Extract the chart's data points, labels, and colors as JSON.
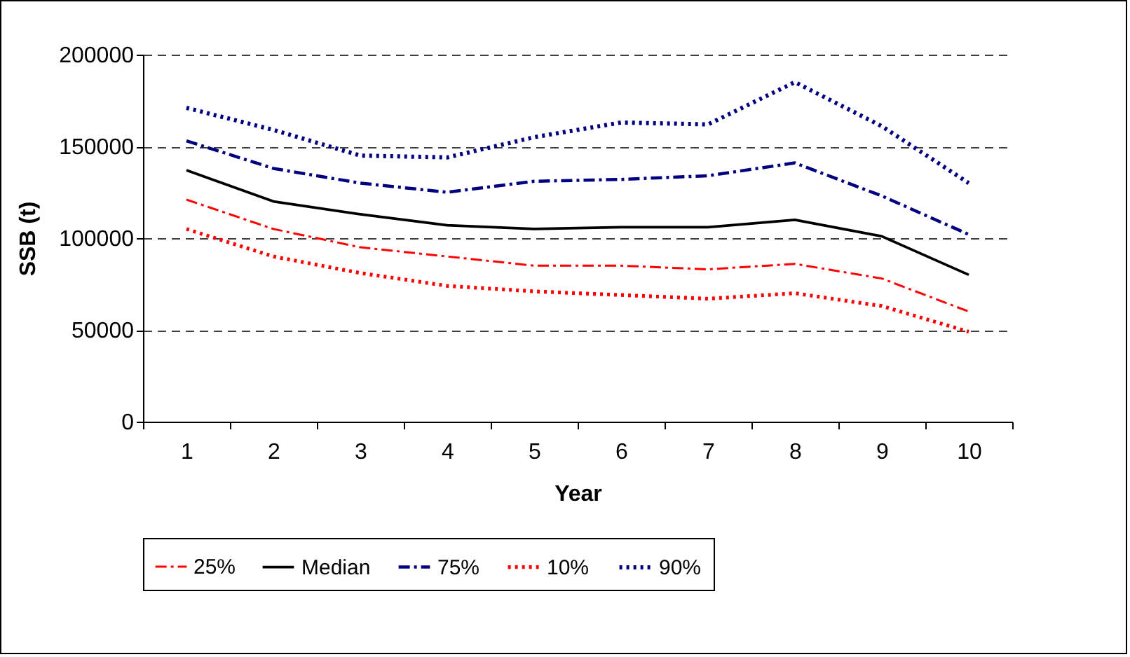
{
  "chart_data": {
    "type": "line",
    "xlabel": "Year",
    "ylabel": "SSB (t)",
    "categories": [
      "1",
      "2",
      "3",
      "4",
      "5",
      "6",
      "7",
      "8",
      "9",
      "10"
    ],
    "series": [
      {
        "name": "25%",
        "color": "#ff0000",
        "line_style": "dashed",
        "values": [
          121000,
          105000,
          95000,
          90000,
          85000,
          85000,
          83000,
          86000,
          78000,
          60000
        ]
      },
      {
        "name": "Median",
        "color": "#000000",
        "line_style": "solid",
        "values": [
          137000,
          120000,
          113000,
          107000,
          105000,
          106000,
          106000,
          110000,
          101000,
          80000
        ]
      },
      {
        "name": "75%",
        "color": "#000080",
        "line_style": "dashed",
        "values": [
          153000,
          138000,
          130000,
          125000,
          131000,
          132000,
          134000,
          141000,
          123000,
          102000
        ]
      },
      {
        "name": "10%",
        "color": "#ff0000",
        "line_style": "dotted",
        "values": [
          105000,
          90000,
          81000,
          74000,
          71000,
          69000,
          67000,
          70000,
          63000,
          49000
        ]
      },
      {
        "name": "90%",
        "color": "#000080",
        "line_style": "dotted",
        "values": [
          171000,
          159000,
          145000,
          144000,
          155000,
          163000,
          162000,
          185000,
          161000,
          130000
        ]
      }
    ],
    "ylim": [
      0,
      200000
    ],
    "yticks": [
      0,
      50000,
      100000,
      150000,
      200000
    ],
    "grid": "y",
    "legend": "bottom",
    "marker": "none"
  }
}
